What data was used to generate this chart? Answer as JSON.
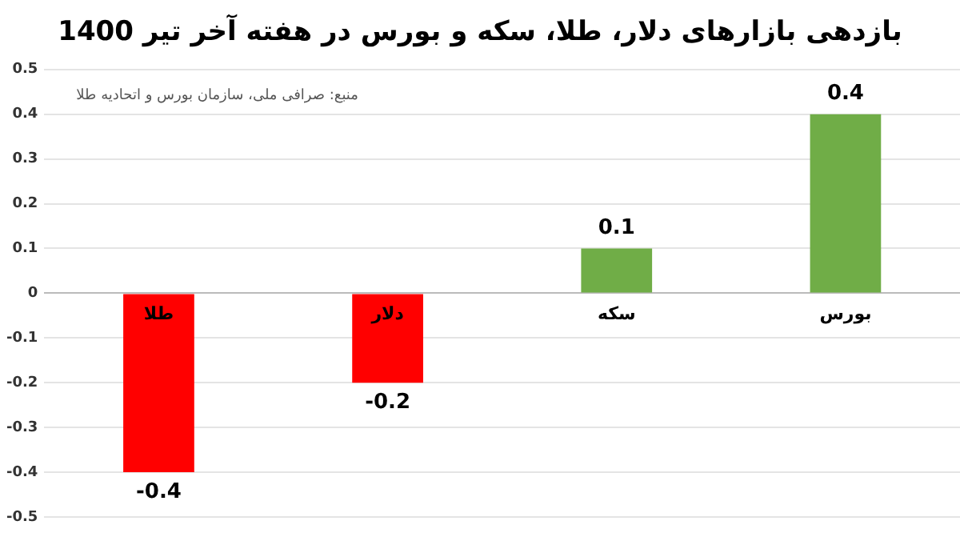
{
  "chart_data": {
    "type": "bar",
    "title": "بازدهی بازارهای دلار، طلا، سکه و بورس در هفته آخر تیر 1400",
    "categories": [
      "طلا",
      "دلار",
      "سکه",
      "بورس"
    ],
    "values": [
      -0.4,
      -0.2,
      0.1,
      0.4
    ],
    "colors": [
      "#ff0000",
      "#ff0000",
      "#70ad47",
      "#70ad47"
    ],
    "ylim": [
      -0.5,
      0.5
    ],
    "yticks": [
      -0.5,
      -0.4,
      -0.3,
      -0.2,
      -0.1,
      0,
      0.1,
      0.2,
      0.3,
      0.4,
      0.5
    ],
    "grid": "y",
    "data_labels": true,
    "annotations": [
      "منبع: صرافی ملی، سازمان بورس و اتحادیه طلا"
    ]
  }
}
